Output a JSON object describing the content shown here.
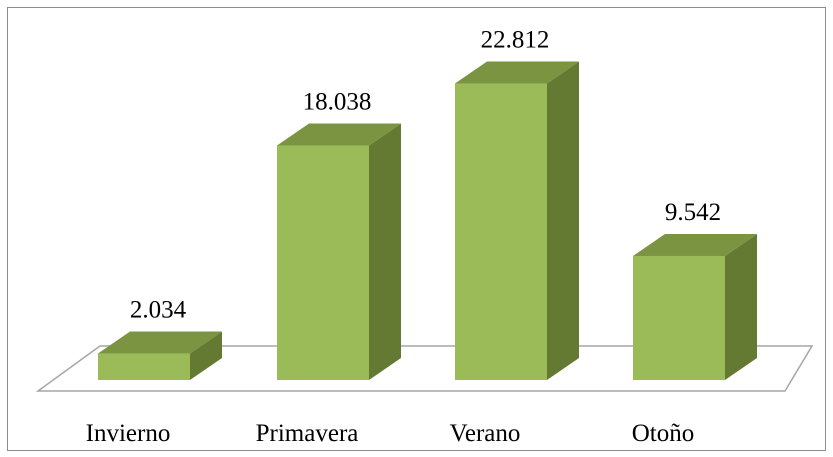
{
  "chart_data": {
    "type": "bar3d",
    "categories": [
      "Invierno",
      "Primavera",
      "Verano",
      "Otoño"
    ],
    "values": [
      2034,
      18038,
      22812,
      9542
    ],
    "value_labels": [
      "2.034",
      "18.038",
      "22.812",
      "9.542"
    ],
    "color": "#9bbb59"
  }
}
